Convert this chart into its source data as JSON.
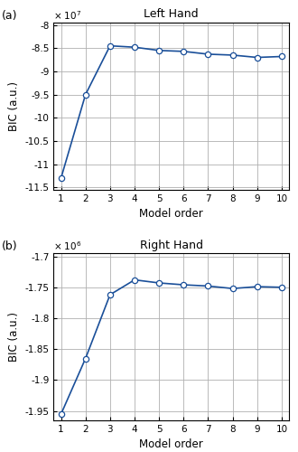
{
  "left_hand": {
    "title": "Left Hand",
    "x": [
      1,
      2,
      3,
      4,
      5,
      6,
      7,
      8,
      9,
      10
    ],
    "y": [
      -113000000.0,
      -95000000.0,
      -84500000.0,
      -84800000.0,
      -85500000.0,
      -85700000.0,
      -86300000.0,
      -86500000.0,
      -87000000.0,
      -86800000.0
    ],
    "ylim": [
      -115500000.0,
      -79500000.0
    ],
    "yticks": [
      -115000000.0,
      -110000000.0,
      -105000000.0,
      -100000000.0,
      -95000000.0,
      -90000000.0,
      -85000000.0,
      -80000000.0
    ],
    "ytick_labels": [
      "-11.5",
      "-11",
      "-10.5",
      "-10",
      "-9.5",
      "-9",
      "-8.5",
      "-8"
    ],
    "scale_label": "× 10$^{7}$",
    "panel_label": "(a)"
  },
  "right_hand": {
    "title": "Right Hand",
    "x": [
      1,
      2,
      3,
      4,
      5,
      6,
      7,
      8,
      9,
      10
    ],
    "y": [
      -1955000.0,
      -1865000.0,
      -1762000.0,
      -1738000.0,
      -1743000.0,
      -1746000.0,
      -1748000.0,
      -1752000.0,
      -1749000.0,
      -1750000.0
    ],
    "ylim": [
      -1965000.0,
      -1695000.0
    ],
    "yticks": [
      -1950000.0,
      -1900000.0,
      -1850000.0,
      -1800000.0,
      -1750000.0,
      -1700000.0
    ],
    "ytick_labels": [
      "-1.95",
      "-1.9",
      "-1.85",
      "-1.8",
      "-1.75",
      "-1.7"
    ],
    "scale_label": "× 10$^{6}$",
    "panel_label": "(b)"
  },
  "xlabel": "Model order",
  "ylabel": "BIC (a.u.)",
  "line_color": "#1a4f99",
  "marker": "o",
  "marker_face": "white",
  "marker_edge": "#1a4f99",
  "marker_size": 4.5,
  "line_width": 1.2,
  "grid_color": "#b0b0b0",
  "bg_color": "#ffffff"
}
